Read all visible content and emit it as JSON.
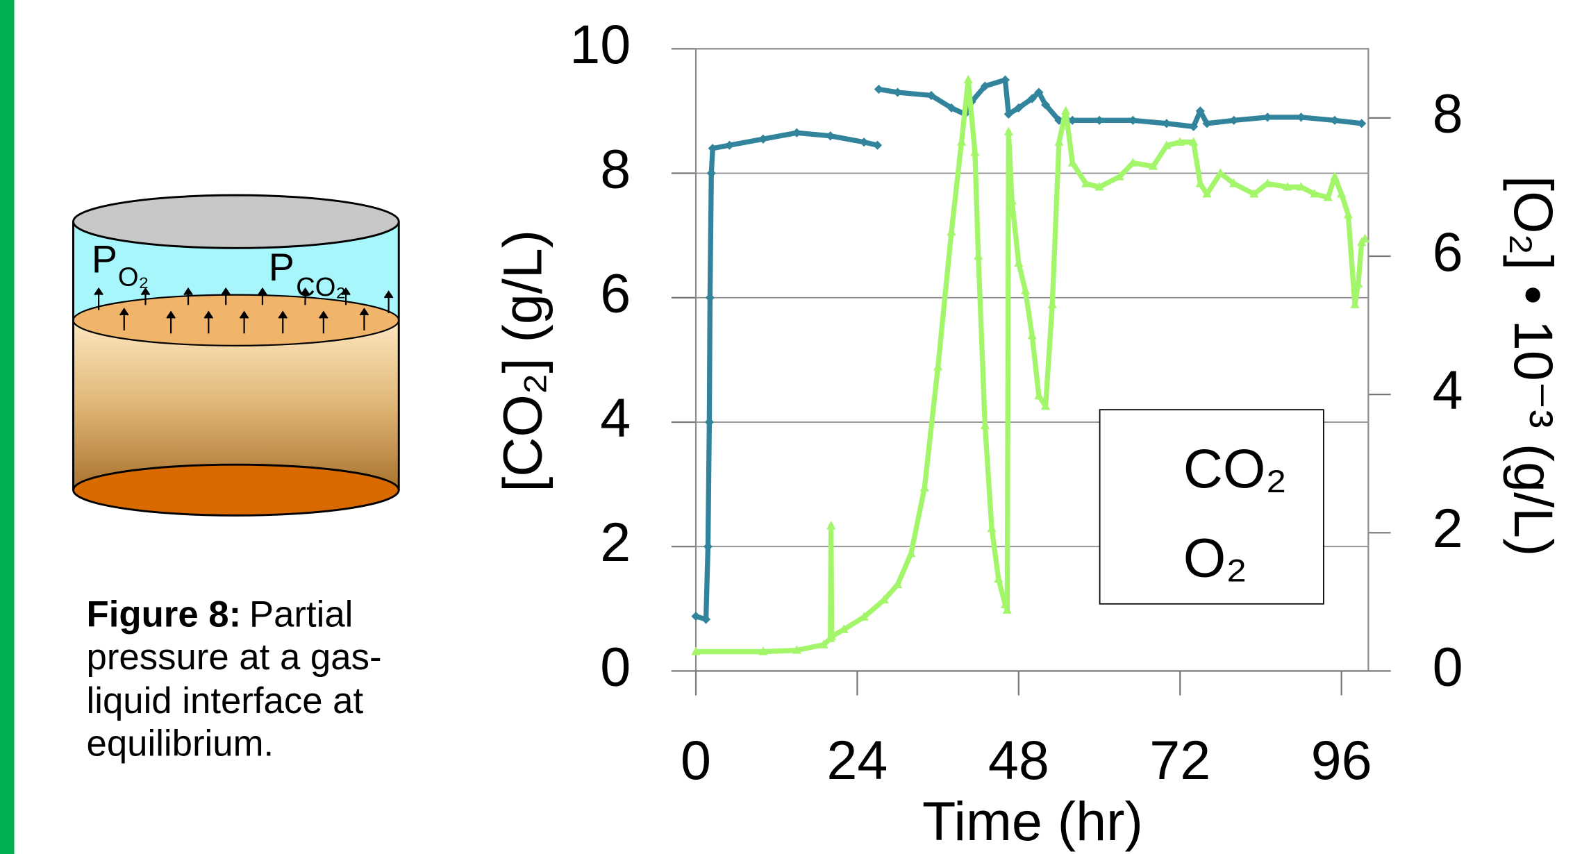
{
  "diagram": {
    "p_o2": {
      "symbol": "P",
      "subscript": "O₂"
    },
    "p_co2": {
      "symbol": "P",
      "subscript": "CO₂"
    }
  },
  "caption": {
    "label": "Figure 8:",
    "lines": [
      "Partial",
      "pressure at a gas-",
      "liquid interface at",
      "equilibrium."
    ]
  },
  "chart_data": {
    "type": "line",
    "x_label": "Time (hr)",
    "y_label": "[CO₂] (g/L)",
    "y2_label": "[O₂] • 10⁻³ (g/L)",
    "xlim": [
      0,
      100
    ],
    "xticks": [
      0,
      24,
      48,
      72,
      96
    ],
    "ylim": [
      0,
      10
    ],
    "yticks": [
      0,
      2,
      4,
      6,
      8,
      10
    ],
    "y2lim": [
      0,
      9
    ],
    "y2ticks": [
      0,
      2,
      4,
      6,
      8
    ],
    "grid": true,
    "legend": "center right",
    "series": [
      {
        "name": "CO₂",
        "color": "#31849b",
        "marker": "diamond",
        "x": [
          0,
          1.5,
          1.8,
          2,
          2.1,
          2.3,
          2.5,
          5,
          10,
          15,
          20,
          25,
          27,
          27.1,
          27.2,
          30,
          35,
          38,
          40,
          41,
          43,
          46,
          46.5,
          48,
          50,
          51,
          52,
          54,
          56,
          60,
          65,
          70,
          74,
          75,
          76,
          80,
          85,
          90,
          95,
          99
        ],
        "values": [
          0.88,
          0.83,
          2,
          4,
          6,
          8,
          8.4,
          8.45,
          8.55,
          8.65,
          8.6,
          8.5,
          8.45,
          null,
          9.35,
          9.3,
          9.25,
          9.05,
          8.95,
          9.15,
          9.4,
          9.5,
          8.95,
          9.05,
          9.2,
          9.3,
          9.1,
          8.85,
          8.85,
          8.85,
          8.85,
          8.8,
          8.75,
          9.0,
          8.8,
          8.85,
          8.9,
          8.9,
          8.85,
          8.8
        ]
      },
      {
        "name": "O₂",
        "color": "#a3f56a",
        "marker": "triangle",
        "axis": "y2",
        "x": [
          0,
          10,
          15,
          19,
          20,
          20.1,
          20.2,
          22,
          25,
          28,
          30,
          32,
          34,
          36,
          38,
          39.5,
          40.5,
          41.5,
          42,
          43,
          44,
          45,
          46,
          46.3,
          46.5,
          47,
          48,
          49,
          50,
          51,
          52,
          53,
          54,
          55,
          56,
          58,
          60,
          63,
          65,
          68,
          70,
          72,
          74,
          75,
          76,
          78,
          80,
          83,
          85,
          88,
          90,
          92,
          94,
          95,
          96,
          97,
          98,
          98.5,
          99,
          99.5
        ],
        "values": [
          0.28,
          0.28,
          0.3,
          0.38,
          0.47,
          2.1,
          0.5,
          0.6,
          0.78,
          1.03,
          1.25,
          1.7,
          2.65,
          4.4,
          6.35,
          7.65,
          8.55,
          7.5,
          6.0,
          3.55,
          2.06,
          1.33,
          0.96,
          0.88,
          7.8,
          6.8,
          5.9,
          5.5,
          4.85,
          3.98,
          3.83,
          5.3,
          7.65,
          8.1,
          7.35,
          7.05,
          7.0,
          7.15,
          7.35,
          7.3,
          7.6,
          7.65,
          7.65,
          7.05,
          6.9,
          7.2,
          7.05,
          6.9,
          7.05,
          7.0,
          7.0,
          6.9,
          6.85,
          7.15,
          6.9,
          6.6,
          5.3,
          5.6,
          6.2,
          6.25
        ]
      }
    ]
  }
}
